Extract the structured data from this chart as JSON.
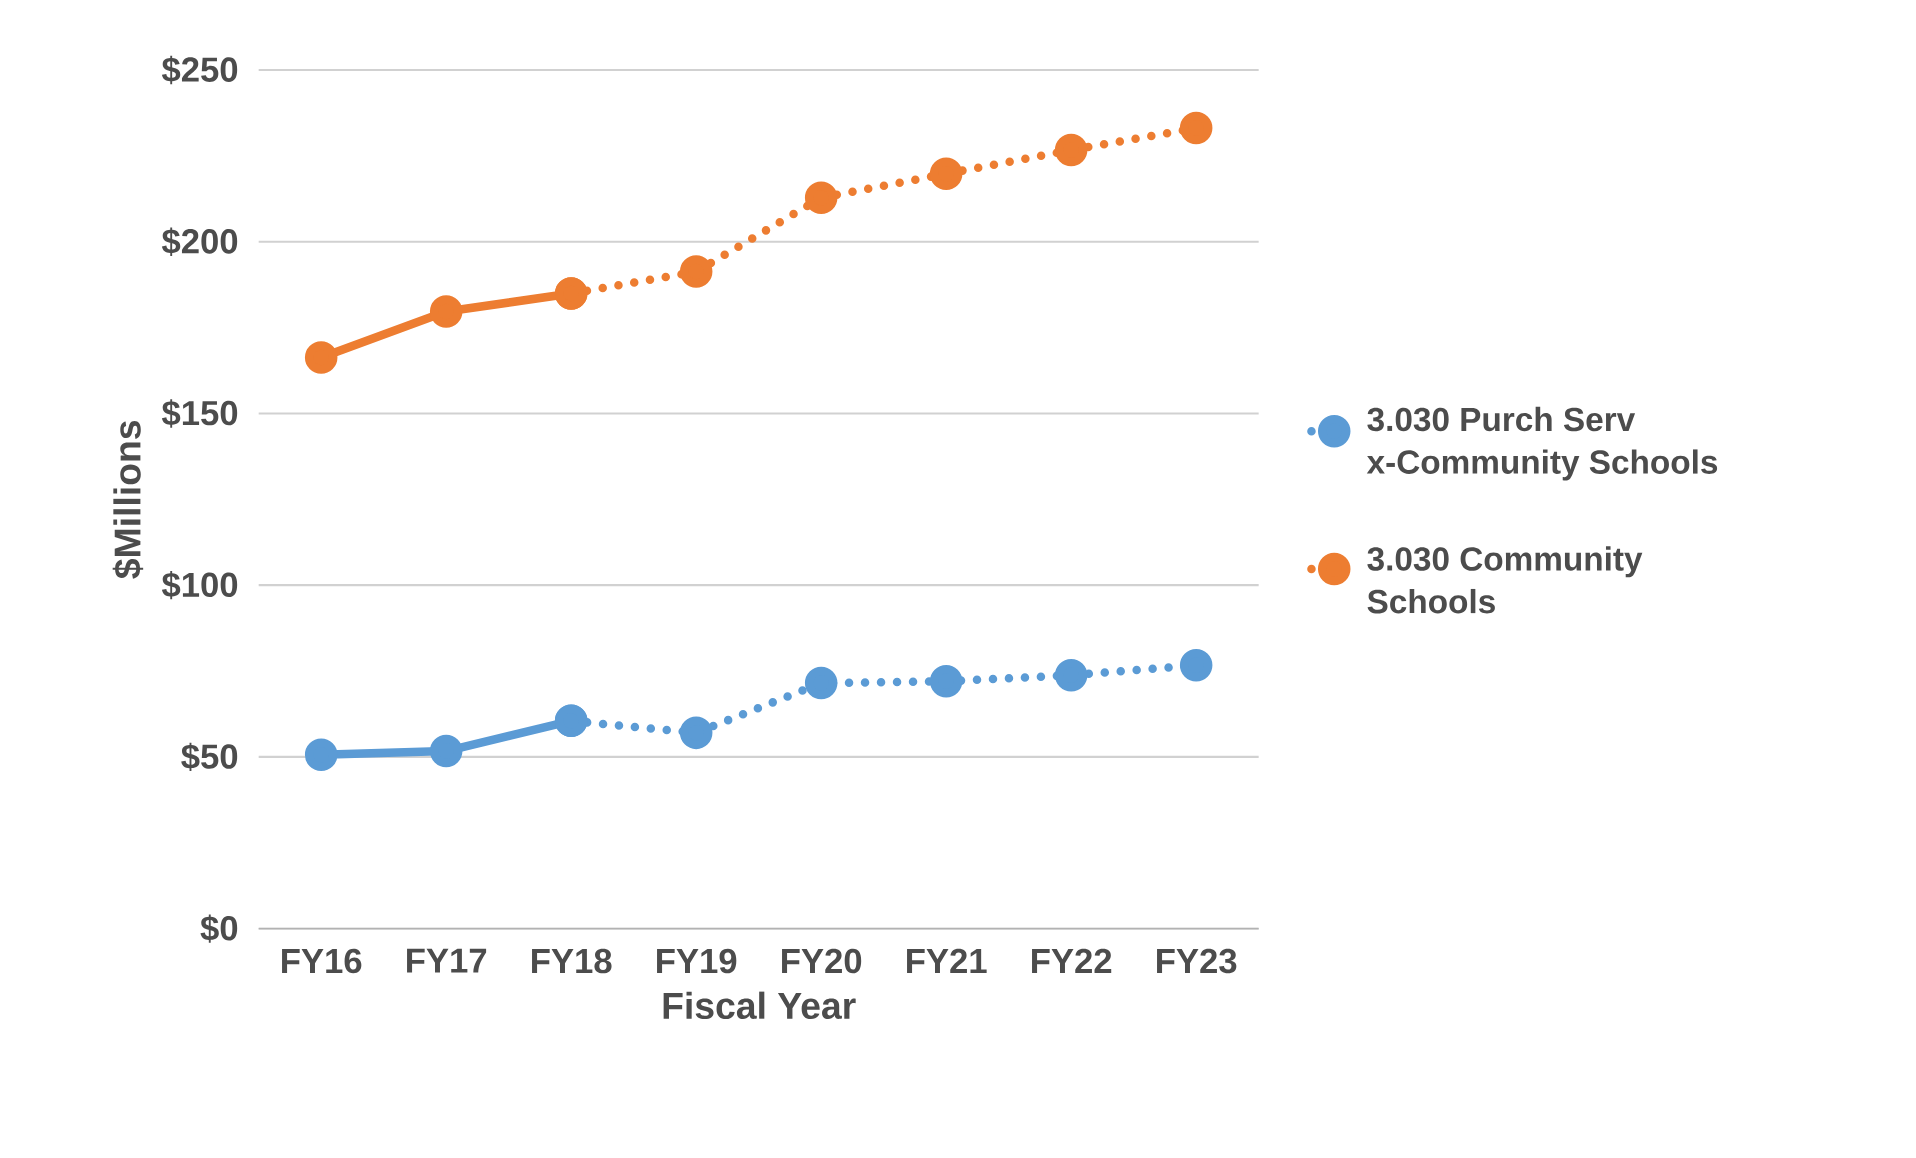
{
  "chart_data": {
    "type": "line",
    "xlabel": "Fiscal Year",
    "ylabel": "$Millions",
    "categories": [
      "FY16",
      "FY17",
      "FY18",
      "FY19",
      "FY20",
      "FY21",
      "FY22",
      "FY23"
    ],
    "series": [
      {
        "color": "#5b9bd5",
        "line_style": "solid",
        "values": [
          50.6,
          51.7,
          60.5,
          null,
          null,
          null,
          null,
          null
        ]
      },
      {
        "name": "3.030 Purch Serv x-Community Schools",
        "color": "#5b9bd5",
        "line_style": "dotted",
        "values": [
          null,
          null,
          60.5,
          57,
          71.5,
          72,
          73.8,
          76.7
        ]
      },
      {
        "color": "#ed7d31",
        "line_style": "solid",
        "values": [
          166.3,
          179.7,
          184.9,
          null,
          null,
          null,
          null,
          null
        ]
      },
      {
        "name": "3.030 Community Schools",
        "color": "#ed7d31",
        "line_style": "dotted",
        "values": [
          null,
          null,
          184.9,
          191.3,
          212.8,
          219.8,
          226.7,
          233.1
        ]
      }
    ],
    "ylim": [
      0,
      250
    ],
    "yticks": [
      {
        "value": 0,
        "label": "$0"
      },
      {
        "value": 50,
        "label": "$50"
      },
      {
        "value": 100,
        "label": "$100"
      },
      {
        "value": 150,
        "label": "$150"
      },
      {
        "value": 200,
        "label": "$200"
      },
      {
        "value": 250,
        "label": "$250"
      }
    ],
    "grid": "y",
    "legend": "right",
    "marker": "circle"
  }
}
